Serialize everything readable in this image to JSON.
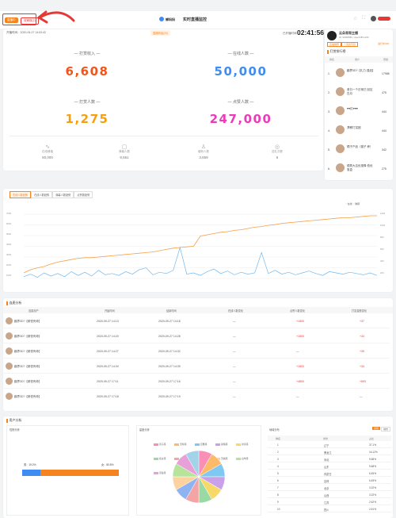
{
  "header": {
    "badge_live": "直播中",
    "badge_pending": "待审核(2)",
    "logo_text": "蝉妈妈",
    "title": "实时直播监控",
    "open_time_label": "开播时间",
    "open_time": "2020-09-27 14:53:42",
    "notice_text": "直播商品(20)",
    "duration_label": "已开播时间",
    "duration": "02:41:56"
  },
  "main_stats": [
    {
      "label": "— 打赏收入 —",
      "value": "6,608",
      "color": "#f2541b"
    },
    {
      "label": "— 在线人数 —",
      "value": "50,000",
      "color": "#3f8df2"
    },
    {
      "label": "— 打赏人数 —",
      "value": "1,275",
      "color": "#f5a00f"
    },
    {
      "label": "— 点赞人数 —",
      "value": "247,000",
      "color": "#ec3ab8"
    }
  ],
  "mini_stats": [
    {
      "icon": "∿",
      "label": "在线峰值",
      "value": "50,000"
    },
    {
      "icon": "▢",
      "label": "弹幕人数",
      "value": "9,551"
    },
    {
      "icon": "♙",
      "label": "增粉人数",
      "value": "3,659"
    },
    {
      "icon": "◎",
      "label": "送礼次数",
      "value": "6"
    }
  ],
  "streamer": {
    "name": "云朵哥哥主播",
    "id": "ID: 99486580 | xiaozhifPro233",
    "tag1": "直播推荐",
    "tag2": "一天的节目",
    "link": "进行中(99)"
  },
  "ranking": {
    "title": "打赏排行榜",
    "cols": [
      "排名",
      "用户",
      "贡献"
    ],
    "rows": [
      {
        "rank": "1.",
        "name": "趣界3D?【礼力 强迫】",
        "value": "17986"
      },
      {
        "rank": "2.",
        "name": "昔日一个日常已 回应白月",
        "value": "475"
      },
      {
        "rank": "3.",
        "name": "♥♥红♥♥♥",
        "value": "444"
      },
      {
        "rank": "4.",
        "name": "漂移打赏团",
        "value": "444"
      },
      {
        "rank": "5.",
        "name": "橘子产品（猫子 养）",
        "value": "342"
      },
      {
        "rank": "6.",
        "name": "德秀大吉优惠降 低优惠盒",
        "value": "275"
      }
    ]
  },
  "chart_tabs": [
    "在线人数趋势",
    "在线人数趋势",
    "弹幕人数趋势",
    "点赞数趋势"
  ],
  "chart_data": {
    "type": "line",
    "legend": [
      "在线",
      "弹幕"
    ],
    "series": [
      {
        "name": "在线",
        "values": [
          10,
          15,
          18,
          20,
          24,
          27,
          29,
          31,
          33,
          34,
          34,
          35,
          36,
          37,
          38,
          39,
          40,
          41,
          42,
          43,
          45,
          47,
          49,
          50,
          51,
          52,
          68,
          70,
          72,
          74,
          75,
          77,
          78,
          80,
          82,
          83,
          85,
          86,
          88,
          89,
          90,
          91,
          92,
          93,
          94,
          95,
          96,
          97,
          97,
          98,
          99,
          100,
          100
        ]
      },
      {
        "name": "弹幕",
        "values": [
          4,
          8,
          3,
          10,
          5,
          9,
          4,
          12,
          6,
          11,
          5,
          14,
          7,
          9,
          6,
          12,
          8,
          15,
          18,
          7,
          11,
          9,
          14,
          50,
          8,
          10,
          6,
          12,
          16,
          9,
          13,
          7,
          11,
          8,
          10,
          42,
          9,
          14,
          8,
          11,
          7,
          10,
          13,
          9,
          6,
          12,
          10,
          8,
          11,
          9,
          7,
          10,
          6
        ]
      }
    ],
    "ylim_left": [
      0,
      7000
    ],
    "ylim_right": [
      0,
      1200
    ]
  },
  "axis_left": [
    "7000",
    "6000",
    "5000",
    "4000",
    "3000",
    "2000",
    "1000",
    "0"
  ],
  "axis_right": [
    "1200",
    "1000",
    "800",
    "600",
    "400",
    "200",
    "0"
  ],
  "time_table": {
    "title": "连麦分析",
    "cols": [
      "连麦用户",
      "开始时间",
      "结束时间",
      "在线人数变化",
      "点赞人数变化",
      "打赏金额变化"
    ],
    "rows": [
      {
        "user": "趣界3D?【精悦有奇】",
        "start": "2020-09-27 14:13",
        "end": "2020-09-27 14:18",
        "c1": "—",
        "c2": "+1800",
        "c3": "+37"
      },
      {
        "user": "趣界3D?【精悦有奇】",
        "start": "2020-09-27 14:20",
        "end": "2020-09-27 14:28",
        "c1": "—",
        "c2": "+1800",
        "c3": "+34"
      },
      {
        "user": "趣界3D?【精悦有奇】",
        "start": "2020-09-27 14:27",
        "end": "2020-09-27 14:32",
        "c1": "—",
        "c2": "—",
        "c3": "+39"
      },
      {
        "user": "趣界3D?【精悦有奇】",
        "start": "2020-09-27 14:34",
        "end": "2020-09-27 14:39",
        "c1": "—",
        "c2": "+1800",
        "c3": "+34"
      },
      {
        "user": "趣界3D?【精悦有奇】",
        "start": "2020-09-27 17:11",
        "end": "2020-09-27 17:16",
        "c1": "—",
        "c2": "+4800",
        "c3": "+593"
      },
      {
        "user": "趣界3D?【精悦有奇】",
        "start": "2020-09-27 17:18",
        "end": "2020-09-27 17:19",
        "c1": "—",
        "c2": "—",
        "c3": "—"
      }
    ]
  },
  "user_analysis": {
    "title": "用户分析",
    "gender_title": "性别分析",
    "male_label": "男：19.2%",
    "female_label": "女：80.8%",
    "male": 0.192,
    "age_title": "星座分析",
    "region_title": "地域分布",
    "region_tabs": [
      "省份",
      "城市"
    ],
    "region_cols": [
      "排名",
      "省份",
      "占比"
    ],
    "regions": [
      {
        "rank": "1",
        "name": "辽宁",
        "pct": "37.1%"
      },
      {
        "rank": "2",
        "name": "黑龙江",
        "pct": "16.12%"
      },
      {
        "rank": "3",
        "name": "河北",
        "pct": "9.68%"
      },
      {
        "rank": "4",
        "name": "山东",
        "pct": "9.68%"
      },
      {
        "rank": "5",
        "name": "内蒙古",
        "pct": "6.45%"
      },
      {
        "rank": "6",
        "name": "吉林",
        "pct": "6.45%"
      },
      {
        "rank": "7",
        "name": "北京",
        "pct": "3.22%"
      },
      {
        "rank": "8",
        "name": "山西",
        "pct": "3.22%"
      },
      {
        "rank": "9",
        "name": "江苏",
        "pct": "2.62%"
      },
      {
        "rank": "10",
        "name": "四川",
        "pct": "2.61%"
      }
    ],
    "zodiac": [
      {
        "name": "双子座",
        "color": "#f98eb7"
      },
      {
        "name": "天秤座",
        "color": "#fdbb6a"
      },
      {
        "name": "巨蟹座",
        "color": "#7ec8f2"
      },
      {
        "name": "摩羯座",
        "color": "#c9a1e8"
      },
      {
        "name": "射手座",
        "color": "#f7d96a"
      },
      {
        "name": "处女座",
        "color": "#9ad8a4"
      },
      {
        "name": "水瓶座",
        "color": "#f4a4a4"
      },
      {
        "name": "狮子座",
        "color": "#8eb3f2"
      },
      {
        "name": "天蝎座",
        "color": "#fcd2a0"
      },
      {
        "name": "白羊座",
        "color": "#b8e39a"
      },
      {
        "name": "双鱼座",
        "color": "#e8a0d8"
      },
      {
        "name": "金牛座",
        "color": "#a3d3e8"
      }
    ]
  }
}
